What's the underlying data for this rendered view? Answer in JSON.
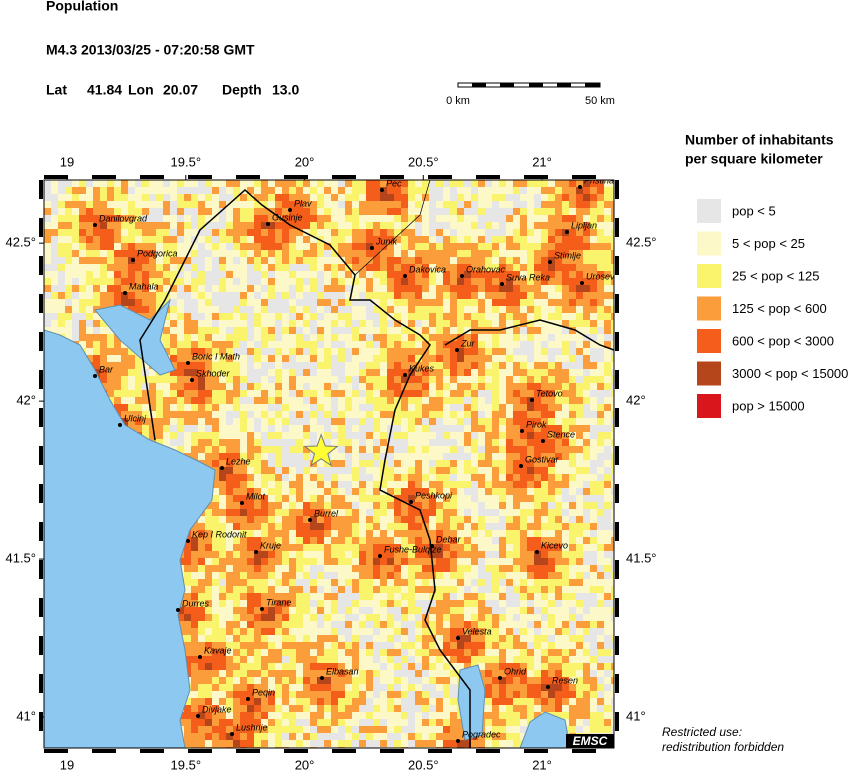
{
  "header": {
    "title": "Population",
    "event": "M4.3  2013/03/25 - 07:20:58 GMT",
    "lat_label": "Lat",
    "lat": 41.84,
    "lon_label": "Lon",
    "lon": 20.07,
    "depth_label": "Depth",
    "depth": "13.0"
  },
  "scale": {
    "start": "0 km",
    "end": "50 km"
  },
  "map": {
    "xlim": [
      18.903,
      21.303
    ],
    "ylim": [
      40.902,
      42.7
    ],
    "xticks": [
      19,
      {
        "value": 19.5,
        "label": "19.5°"
      },
      {
        "value": 20,
        "label": "20°"
      },
      {
        "value": 20.5,
        "label": "20.5°"
      },
      {
        "value": 21,
        "label": "21°"
      }
    ],
    "yticks": [
      {
        "value": 41,
        "label": "41°"
      },
      {
        "value": 41.5,
        "label": "41.5°"
      },
      {
        "value": 42,
        "label": "42°"
      },
      {
        "value": 42.5,
        "label": "42.5°"
      }
    ],
    "cities": [
      "Danilovgrad",
      "Plav",
      "Gusinje",
      "Pec",
      "Junik",
      "Dakovica",
      "Orahovac",
      "Suva Reka",
      "Lipljan",
      "Pristina",
      "Stimlje",
      "Urosevac",
      "Podgorica",
      "Mahala",
      "Zur",
      "Kukes",
      "Boric I Math",
      "Skhoder",
      "Bar",
      "Ulcinj",
      "Tetovo",
      "Pirok",
      "Stence",
      "Gostivar",
      "Lezhe",
      "Milot",
      "Burrel",
      "Peshkopi",
      "Debar",
      "Fushe-Bulqize",
      "Kep I Rodonit",
      "Kruje",
      "Kicevo",
      "Durres",
      "Tirane",
      "Velesta",
      "Kavaje",
      "Ohrid",
      "Resen",
      "Elbasan",
      "Peqin",
      "Divjake",
      "Lushnje",
      "Pogradec"
    ],
    "credit": "EMSC"
  },
  "legend": {
    "title": [
      "Number of inhabitants",
      "per square kilometer"
    ],
    "items": [
      {
        "label": "pop < 5",
        "color": "#e6e6e6"
      },
      {
        "label": "5 < pop < 25",
        "color": "#fcf8c8"
      },
      {
        "label": "25 < pop < 125",
        "color": "#faf46c"
      },
      {
        "label": "125 < pop < 600",
        "color": "#fb9d3a"
      },
      {
        "label": "600 < pop < 3000",
        "color": "#f55d1b"
      },
      {
        "label": "3000 < pop < 15000",
        "color": "#b5451b"
      },
      {
        "label": "pop > 15000",
        "color": "#d8161b"
      }
    ]
  },
  "notice": [
    "Restricted use:",
    "redistribution forbidden"
  ]
}
